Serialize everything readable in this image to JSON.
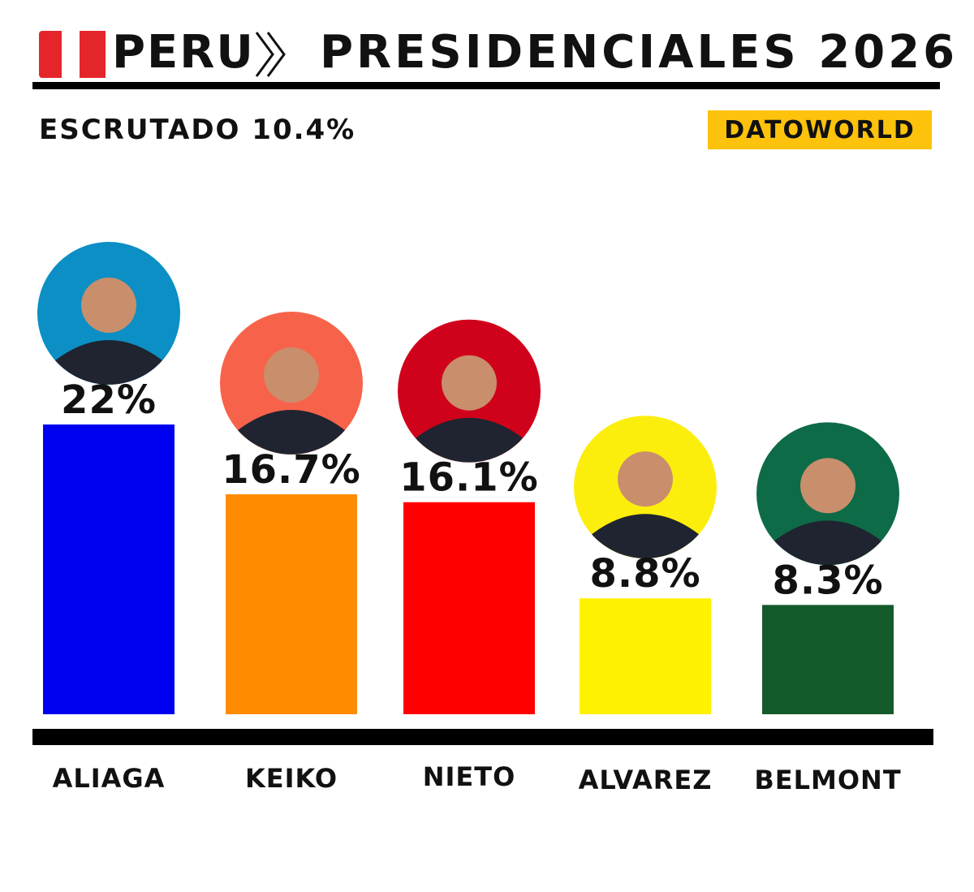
{
  "header": {
    "country": "PERU",
    "title": "PRESIDENCIALES 2026"
  },
  "subheader": {
    "escrutado": "ESCRUTADO 10.4%",
    "brand": "DATOWORLD"
  },
  "colors": {
    "flag_red": "#e4262b",
    "brand_bg": "#fcc20c",
    "rule": "#000000"
  },
  "chart_data": {
    "type": "bar",
    "categories": [
      "ALIAGA",
      "KEIKO",
      "NIETO",
      "ALVAREZ",
      "BELMONT"
    ],
    "values": [
      22,
      16.7,
      16.1,
      8.8,
      8.3
    ],
    "value_labels": [
      "22%",
      "16.7%",
      "16.1%",
      "8.8%",
      "8.3%"
    ],
    "colors": [
      "#0000f0",
      "#ff8c00",
      "#ff0000",
      "#fff200",
      "#155a2a"
    ],
    "avatar_colors": [
      "#0b8fc4",
      "#f7634a",
      "#d0021b",
      "#fcee0c",
      "#0e6b47"
    ],
    "ylim": [
      0,
      22
    ]
  }
}
